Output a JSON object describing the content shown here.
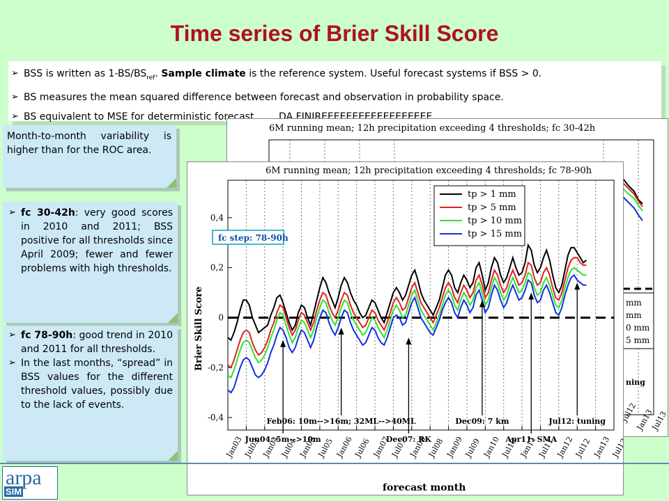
{
  "title": "Time series of Brier Skill Score",
  "bullets": [
    {
      "pre": "BSS is written as 1-BS/BS",
      "sub": "ref",
      "mid": ". ",
      "bold": "Sample climate",
      "post": " is the reference system. Useful forecast systems if BSS > 0."
    },
    {
      "pre": "BS measures the mean squared difference between forecast and observation in probability space."
    },
    {
      "pre": "BS equivalent to MSE for deterministic forecast.       DA FINIREEEEEEEEEEEEEEEEEE"
    }
  ],
  "box1": {
    "text": "Month-to-month variability is higher than for the ROC area."
  },
  "box2": {
    "bold": "fc 30-42h",
    "text": ": very good scores in 2010 and 2011; BSS positive for all thresholds since April 2009; fewer and fewer problems with high thresholds."
  },
  "box3": {
    "item1_bold": "fc 78-90h",
    "item1_text": ": good trend in 2010 and 2011 for all thresholds.",
    "item2_text": "In the last months, “spread” in BSS values for the different threshold values, possibly due to the lack of events."
  },
  "logo": {
    "text1": "arpa",
    "text2": "SIM"
  },
  "back_chart": {
    "title": "6M running mean; 12h precipitation exceeding 4 thresholds; fc 30-42h",
    "legend_partial": [
      "mm",
      "mm",
      "0 mm",
      "5 mm"
    ],
    "annotation_partial": "ning",
    "xticks_partial": [
      "Jul12",
      "Jan13",
      "Jul13"
    ]
  },
  "chart_data": {
    "type": "line",
    "title": "6M running mean; 12h precipitation exceeding 4 thresholds; fc 78-90h",
    "badge": "fc step: 78-90h",
    "xlabel": "forecast month",
    "ylabel": "Brier Skill Score",
    "ylim": [
      -0.45,
      0.55
    ],
    "yticks": [
      -0.4,
      -0.2,
      0,
      0.2,
      0.4
    ],
    "ytick_labels": [
      "-0,4",
      "-0,2",
      "0",
      "0,2",
      "0,4"
    ],
    "x_tick_labels": [
      "Jan03",
      "Jul03",
      "Jan04",
      "Jul04",
      "Jan05",
      "Jul05",
      "Jan06",
      "Jul06",
      "Jan07",
      "Jul07",
      "Jan08",
      "Jul08",
      "Jan09",
      "Jul09",
      "Jan10",
      "Jul10",
      "Jan11",
      "Jul11",
      "Jan12",
      "Jul12",
      "Jan13",
      "Jul13"
    ],
    "x_start_month_index": 0,
    "legend_position": "top-right",
    "reference_line": 0,
    "series": [
      {
        "name": "tp > 1 mm",
        "color": "#000000",
        "values": [
          -0.08,
          -0.09,
          -0.06,
          -0.02,
          0.03,
          0.07,
          0.07,
          0.05,
          0.0,
          -0.03,
          -0.06,
          -0.05,
          -0.04,
          -0.03,
          0.01,
          0.04,
          0.08,
          0.09,
          0.06,
          0.02,
          -0.02,
          -0.05,
          -0.03,
          0.02,
          0.05,
          0.04,
          0.0,
          -0.03,
          0.02,
          0.07,
          0.12,
          0.16,
          0.14,
          0.1,
          0.07,
          0.04,
          0.08,
          0.13,
          0.16,
          0.14,
          0.1,
          0.07,
          0.05,
          0.02,
          0.0,
          0.01,
          0.04,
          0.07,
          0.06,
          0.03,
          0.0,
          -0.02,
          0.02,
          0.06,
          0.1,
          0.12,
          0.1,
          0.07,
          0.09,
          0.13,
          0.17,
          0.19,
          0.15,
          0.1,
          0.07,
          0.05,
          0.03,
          0.01,
          0.04,
          0.07,
          0.12,
          0.17,
          0.19,
          0.17,
          0.12,
          0.1,
          0.14,
          0.17,
          0.15,
          0.12,
          0.14,
          0.2,
          0.22,
          0.17,
          0.11,
          0.14,
          0.2,
          0.24,
          0.22,
          0.17,
          0.14,
          0.16,
          0.2,
          0.24,
          0.2,
          0.17,
          0.18,
          0.22,
          0.29,
          0.27,
          0.21,
          0.18,
          0.2,
          0.24,
          0.27,
          0.23,
          0.17,
          0.12,
          0.1,
          0.13,
          0.19,
          0.25,
          0.28,
          0.28,
          0.26,
          0.24,
          0.22,
          0.23
        ]
      },
      {
        "name": "tp > 5 mm",
        "color": "#e02020",
        "values": [
          -0.19,
          -0.2,
          -0.17,
          -0.13,
          -0.09,
          -0.06,
          -0.05,
          -0.06,
          -0.1,
          -0.13,
          -0.15,
          -0.14,
          -0.12,
          -0.09,
          -0.05,
          -0.02,
          0.02,
          0.05,
          0.04,
          0.0,
          -0.04,
          -0.07,
          -0.05,
          -0.01,
          0.02,
          0.01,
          -0.02,
          -0.05,
          -0.02,
          0.03,
          0.07,
          0.1,
          0.09,
          0.05,
          0.02,
          0.0,
          0.03,
          0.07,
          0.1,
          0.09,
          0.05,
          0.02,
          0.0,
          -0.02,
          -0.04,
          -0.03,
          0.0,
          0.03,
          0.02,
          -0.01,
          -0.03,
          -0.05,
          -0.02,
          0.02,
          0.06,
          0.08,
          0.06,
          0.03,
          0.04,
          0.08,
          0.12,
          0.14,
          0.1,
          0.06,
          0.04,
          0.02,
          0.0,
          -0.02,
          0.01,
          0.04,
          0.08,
          0.12,
          0.14,
          0.12,
          0.08,
          0.06,
          0.1,
          0.13,
          0.11,
          0.08,
          0.1,
          0.15,
          0.17,
          0.13,
          0.08,
          0.1,
          0.15,
          0.19,
          0.17,
          0.13,
          0.1,
          0.12,
          0.16,
          0.19,
          0.16,
          0.13,
          0.14,
          0.17,
          0.22,
          0.21,
          0.16,
          0.13,
          0.14,
          0.18,
          0.2,
          0.17,
          0.12,
          0.08,
          0.07,
          0.1,
          0.15,
          0.2,
          0.23,
          0.24,
          0.24,
          0.22,
          0.21,
          0.21
        ]
      },
      {
        "name": "tp > 10 mm",
        "color": "#30e030",
        "values": [
          -0.23,
          -0.24,
          -0.21,
          -0.17,
          -0.13,
          -0.1,
          -0.09,
          -0.1,
          -0.13,
          -0.16,
          -0.18,
          -0.17,
          -0.15,
          -0.12,
          -0.08,
          -0.05,
          -0.01,
          0.02,
          0.01,
          -0.03,
          -0.07,
          -0.1,
          -0.08,
          -0.04,
          -0.01,
          -0.02,
          -0.05,
          -0.08,
          -0.05,
          0.0,
          0.04,
          0.07,
          0.06,
          0.02,
          -0.01,
          -0.03,
          0.0,
          0.04,
          0.07,
          0.06,
          0.02,
          -0.01,
          -0.03,
          -0.05,
          -0.07,
          -0.06,
          -0.03,
          0.0,
          -0.01,
          -0.04,
          -0.06,
          -0.08,
          -0.05,
          -0.01,
          0.03,
          0.05,
          0.03,
          0.0,
          0.01,
          0.05,
          0.09,
          0.11,
          0.07,
          0.03,
          0.01,
          -0.01,
          -0.03,
          -0.05,
          -0.02,
          0.01,
          0.05,
          0.09,
          0.11,
          0.09,
          0.05,
          0.03,
          0.07,
          0.1,
          0.08,
          0.05,
          0.07,
          0.12,
          0.14,
          0.1,
          0.05,
          0.07,
          0.12,
          0.16,
          0.14,
          0.1,
          0.07,
          0.09,
          0.13,
          0.16,
          0.13,
          0.1,
          0.11,
          0.14,
          0.18,
          0.17,
          0.12,
          0.09,
          0.1,
          0.14,
          0.16,
          0.13,
          0.09,
          0.05,
          0.04,
          0.07,
          0.12,
          0.16,
          0.19,
          0.2,
          0.19,
          0.18,
          0.17,
          0.17
        ]
      },
      {
        "name": "tp > 15 mm",
        "color": "#1030e0",
        "values": [
          -0.29,
          -0.3,
          -0.28,
          -0.24,
          -0.2,
          -0.17,
          -0.16,
          -0.17,
          -0.2,
          -0.23,
          -0.24,
          -0.23,
          -0.21,
          -0.18,
          -0.14,
          -0.11,
          -0.07,
          -0.04,
          -0.05,
          -0.08,
          -0.12,
          -0.14,
          -0.12,
          -0.08,
          -0.05,
          -0.06,
          -0.09,
          -0.12,
          -0.09,
          -0.04,
          0.0,
          0.03,
          0.02,
          -0.02,
          -0.05,
          -0.07,
          -0.04,
          0.0,
          0.03,
          0.02,
          -0.02,
          -0.05,
          -0.07,
          -0.09,
          -0.11,
          -0.1,
          -0.07,
          -0.04,
          -0.05,
          -0.08,
          -0.1,
          -0.11,
          -0.08,
          -0.04,
          0.0,
          0.01,
          0.0,
          -0.03,
          -0.02,
          0.02,
          0.06,
          0.08,
          0.04,
          0.0,
          -0.02,
          -0.04,
          -0.06,
          -0.07,
          -0.04,
          -0.01,
          0.03,
          0.06,
          0.08,
          0.06,
          0.02,
          0.0,
          0.04,
          0.07,
          0.05,
          0.02,
          0.04,
          0.09,
          0.11,
          0.07,
          0.02,
          0.04,
          0.09,
          0.13,
          0.11,
          0.07,
          0.04,
          0.06,
          0.1,
          0.13,
          0.1,
          0.07,
          0.08,
          0.11,
          0.15,
          0.14,
          0.09,
          0.06,
          0.07,
          0.11,
          0.13,
          0.1,
          0.06,
          0.02,
          0.01,
          0.04,
          0.09,
          0.13,
          0.16,
          0.17,
          0.15,
          0.14,
          0.13,
          0.13
        ]
      }
    ],
    "annotations": [
      {
        "text": "Jun04: 5m-->10m",
        "month": 18,
        "tip_value": -0.09
      },
      {
        "text": "Feb06: 10m-->16m; 32ML-->40ML",
        "month": 37,
        "tip_value": -0.04
      },
      {
        "text": "Dec07: RK",
        "month": 59,
        "tip_value": -0.08
      },
      {
        "text": "Dec09: 7 km",
        "month": 83,
        "tip_value": 0.07
      },
      {
        "text": "Apr11: SMA",
        "month": 99,
        "tip_value": 0.1
      },
      {
        "text": "Jul12: tuning",
        "month": 114,
        "tip_value": 0.14
      }
    ]
  }
}
